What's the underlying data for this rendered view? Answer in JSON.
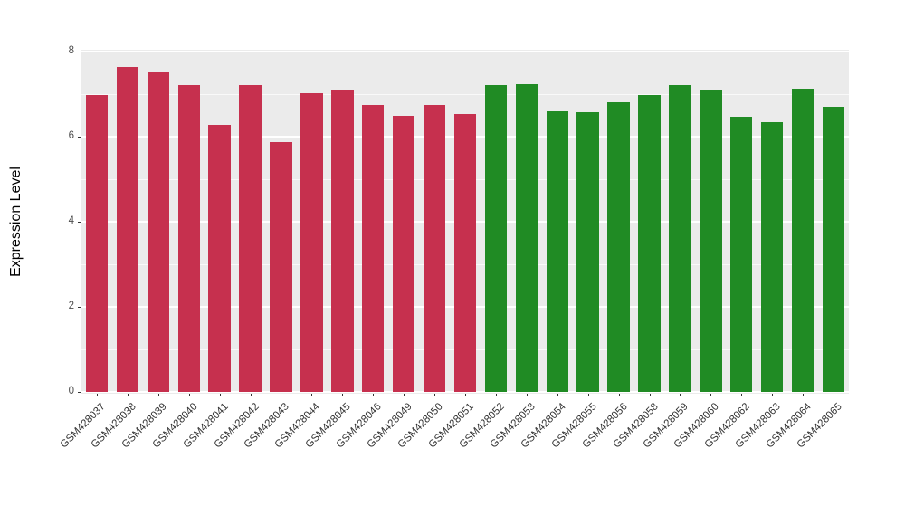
{
  "chart_data": {
    "type": "bar",
    "title": "",
    "xlabel": "",
    "ylabel": "Expression Level",
    "ylim": [
      0,
      8
    ],
    "yticks": [
      0,
      2,
      4,
      6,
      8
    ],
    "yticks_minor": [
      1,
      3,
      5,
      7
    ],
    "grid": true,
    "legend_position": "none",
    "panel_background": "#ebebeb",
    "grid_color": "#ffffff",
    "group_colors": {
      "group1": "#c6304e",
      "group2": "#208b24"
    },
    "categories": [
      "GSM428037",
      "GSM428038",
      "GSM428039",
      "GSM428040",
      "GSM428041",
      "GSM428042",
      "GSM428043",
      "GSM428044",
      "GSM428045",
      "GSM428046",
      "GSM428049",
      "GSM428050",
      "GSM428051",
      "GSM428052",
      "GSM428053",
      "GSM428054",
      "GSM428055",
      "GSM428056",
      "GSM428058",
      "GSM428059",
      "GSM428060",
      "GSM428062",
      "GSM428063",
      "GSM428064",
      "GSM428065"
    ],
    "values": [
      6.98,
      7.64,
      7.53,
      7.21,
      6.28,
      7.21,
      5.87,
      7.02,
      7.11,
      6.74,
      6.49,
      6.74,
      6.53,
      7.21,
      7.23,
      6.6,
      6.57,
      6.81,
      6.98,
      7.21,
      7.11,
      6.47,
      6.34,
      7.13,
      6.7
    ],
    "colors": [
      "#c6304e",
      "#c6304e",
      "#c6304e",
      "#c6304e",
      "#c6304e",
      "#c6304e",
      "#c6304e",
      "#c6304e",
      "#c6304e",
      "#c6304e",
      "#c6304e",
      "#c6304e",
      "#c6304e",
      "#208b24",
      "#208b24",
      "#208b24",
      "#208b24",
      "#208b24",
      "#208b24",
      "#208b24",
      "#208b24",
      "#208b24",
      "#208b24",
      "#208b24",
      "#208b24"
    ]
  }
}
